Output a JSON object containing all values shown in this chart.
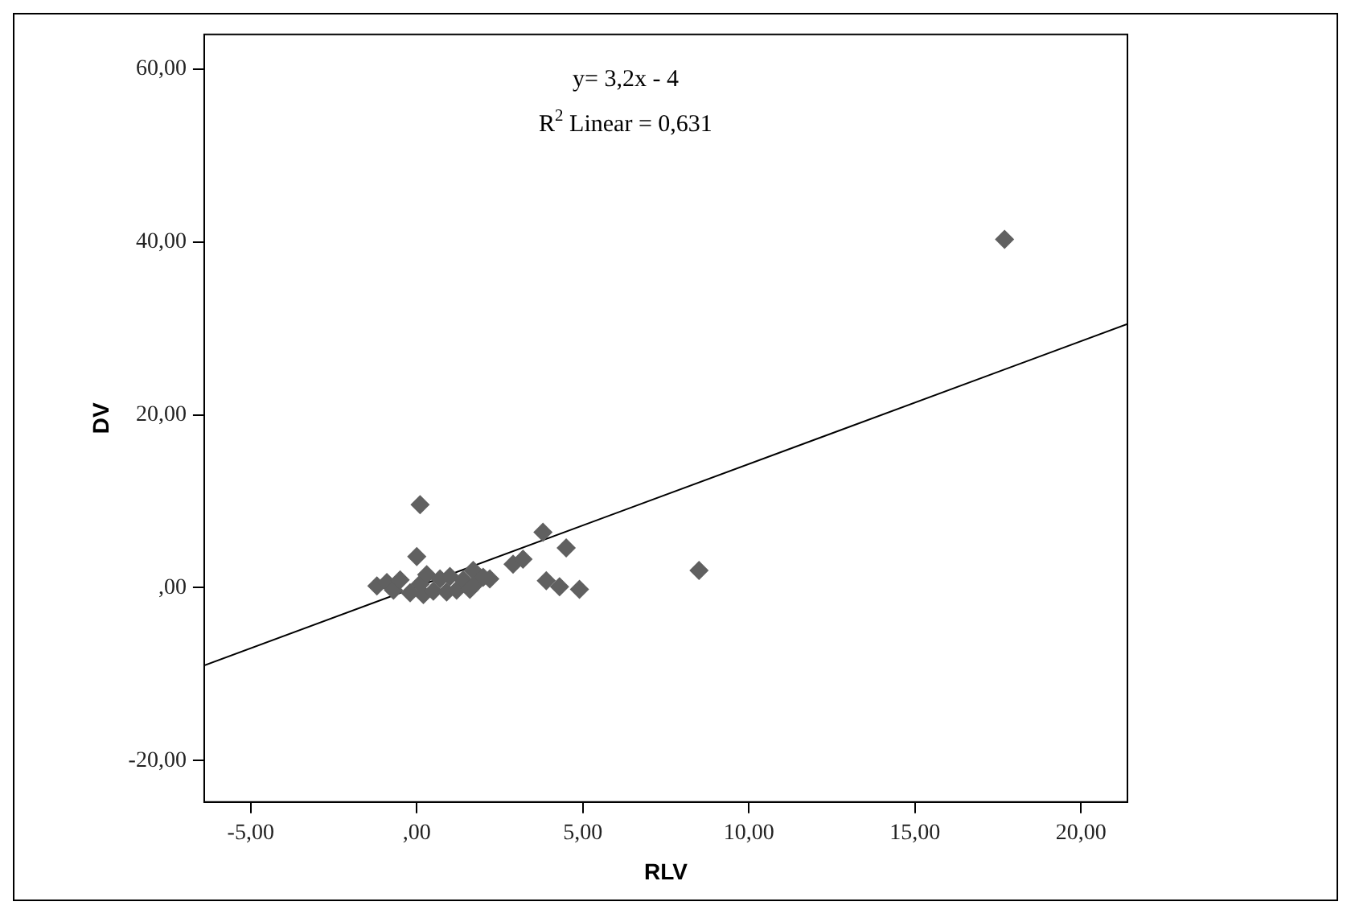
{
  "chart_data": {
    "type": "scatter",
    "xlabel": "RLV",
    "ylabel": "DV",
    "annotations": [
      "y= 3,2x - 4",
      "R$^{2}$ Linear = 0,631"
    ],
    "marker": "diamond",
    "grid": false,
    "legend": false,
    "xlim": [
      -6.4,
      21.4
    ],
    "ylim": [
      -24.8,
      64
    ],
    "xticks": [
      {
        "value": -5,
        "label": "-5,00"
      },
      {
        "value": 0,
        "label": ",00"
      },
      {
        "value": 5,
        "label": "5,00"
      },
      {
        "value": 10,
        "label": "10,00"
      },
      {
        "value": 15,
        "label": "15,00"
      },
      {
        "value": 20,
        "label": "20,00"
      }
    ],
    "yticks": [
      {
        "value": -20,
        "label": "-20,00"
      },
      {
        "value": 0,
        "label": ",00"
      },
      {
        "value": 20,
        "label": "20,00"
      },
      {
        "value": 40,
        "label": "40,00"
      },
      {
        "value": 60,
        "label": "60,00"
      }
    ],
    "series": [
      {
        "color": "#606060",
        "x": [
          -1.2,
          -0.9,
          -0.7,
          -0.5,
          -0.2,
          0,
          0.1,
          0.2,
          0.3,
          0.5,
          0.7,
          0.9,
          1.0,
          1.2,
          1.4,
          1.6,
          1.7,
          1.8,
          2.0,
          2.2,
          0.1,
          2.9,
          3.2,
          3.8,
          4.5,
          3.9,
          4.3,
          4.9,
          8.5,
          17.7
        ],
        "values": [
          0.2,
          0.6,
          -0.3,
          0.9,
          -0.6,
          3.6,
          0.4,
          -0.8,
          1.5,
          -0.4,
          1.0,
          -0.5,
          1.3,
          -0.3,
          0.9,
          -0.2,
          2.0,
          0.6,
          1.2,
          1.0,
          9.6,
          2.7,
          3.3,
          6.4,
          4.6,
          0.8,
          0.1,
          -0.2,
          2.0,
          40.3
        ]
      },
      {
        "type": "line",
        "color": "#000000",
        "marker": "none",
        "x": [
          -6.4,
          21.4
        ],
        "values": [
          -9,
          30.5
        ]
      }
    ]
  }
}
